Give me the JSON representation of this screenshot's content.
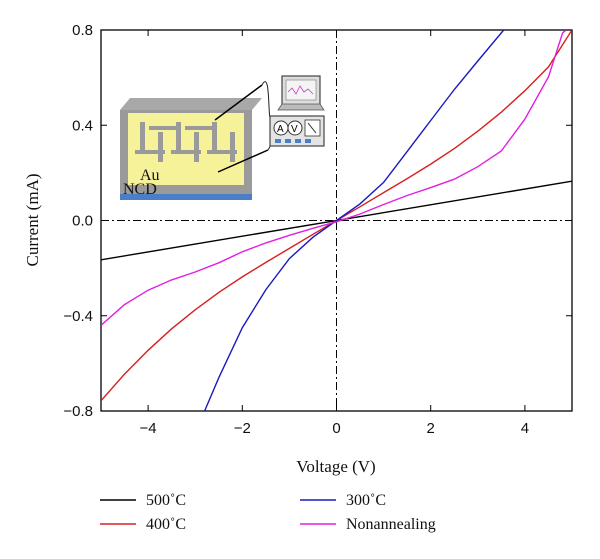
{
  "chart_data": {
    "type": "line",
    "title": "",
    "xlabel": "Voltage (V)",
    "ylabel": "Current (mA)",
    "xlim": [
      -5,
      5
    ],
    "ylim": [
      -0.8,
      0.8
    ],
    "xticks": [
      -4,
      -2,
      0,
      2,
      4
    ],
    "yticks": [
      -0.8,
      -0.4,
      0.0,
      0.4,
      0.8
    ],
    "xtick_labels": [
      "−4",
      "−2",
      "0",
      "2",
      "4"
    ],
    "ytick_labels": [
      "−0.8",
      "−0.4",
      "0.0",
      "0.4",
      "0.8"
    ],
    "grid": false,
    "legend_position": "bottom",
    "series": [
      {
        "name": "500˚C",
        "color": "#000000",
        "x": [
          -5,
          5
        ],
        "y": [
          -0.165,
          0.165
        ]
      },
      {
        "name": "400˚C",
        "color": "#d62020",
        "x": [
          -5,
          -4.5,
          -4,
          -3.5,
          -3,
          -2.5,
          -2,
          -1.5,
          -1,
          -0.5,
          0,
          0.5,
          1,
          1.5,
          2,
          2.5,
          3,
          3.5,
          4,
          4.5,
          5
        ],
        "y": [
          -0.757,
          -0.645,
          -0.545,
          -0.455,
          -0.375,
          -0.302,
          -0.237,
          -0.176,
          -0.117,
          -0.058,
          0,
          0.058,
          0.117,
          0.176,
          0.237,
          0.302,
          0.375,
          0.455,
          0.545,
          0.645,
          0.8
        ]
      },
      {
        "name": "300˚C",
        "color": "#1a1ac0",
        "x": [
          -2.8,
          -2.5,
          -2,
          -1.5,
          -1,
          -0.5,
          0,
          0.5,
          1,
          1.5,
          2,
          2.5,
          3,
          3.55
        ],
        "y": [
          -0.8,
          -0.66,
          -0.45,
          -0.29,
          -0.16,
          -0.07,
          0,
          0.07,
          0.16,
          0.29,
          0.42,
          0.55,
          0.67,
          0.8
        ]
      },
      {
        "name": "Nonannealing",
        "color": "#e020e0",
        "x": [
          -5,
          -4.5,
          -4,
          -3.5,
          -3,
          -2.5,
          -2,
          -1.5,
          -1,
          -0.5,
          0,
          0.5,
          1,
          1.5,
          2,
          2.5,
          3,
          3.5,
          4,
          4.5,
          4.8,
          5
        ],
        "y": [
          -0.44,
          -0.36,
          -0.3,
          -0.25,
          -0.21,
          -0.17,
          -0.13,
          -0.1,
          -0.07,
          -0.035,
          0,
          0.035,
          0.07,
          0.1,
          0.13,
          0.17,
          0.23,
          0.3,
          0.43,
          0.6,
          0.78,
          0.82
        ]
      }
    ]
  },
  "inset": {
    "electrode_label": "Au",
    "substrate_label": "NCD",
    "meter_labels": [
      "A",
      "V"
    ]
  }
}
